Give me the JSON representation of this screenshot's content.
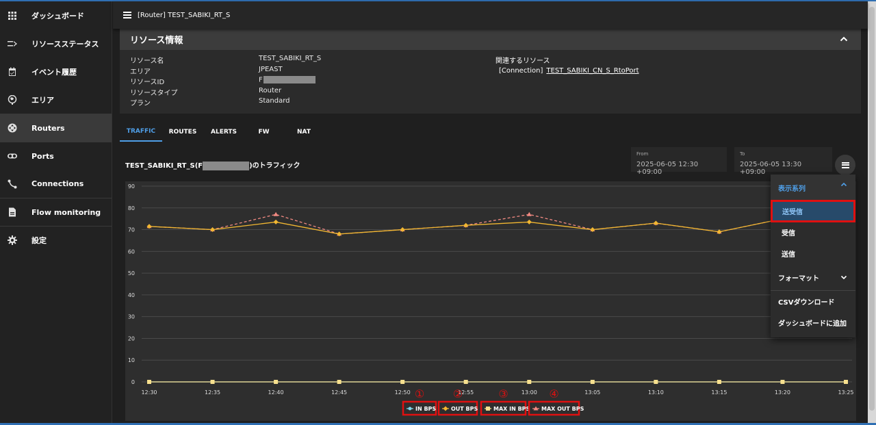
{
  "sidebar": {
    "items": [
      {
        "label": "ダッシュボード",
        "icon": "grid-icon"
      },
      {
        "label": "リソースステータス",
        "icon": "status-icon"
      },
      {
        "label": "イベント履歴",
        "icon": "calendar-icon"
      },
      {
        "label": "エリア",
        "icon": "globe-icon"
      },
      {
        "label": "Routers",
        "icon": "router-icon"
      },
      {
        "label": "Ports",
        "icon": "toggle-icon"
      },
      {
        "label": "Connections",
        "icon": "connection-icon"
      },
      {
        "label": "Flow monitoring",
        "icon": "document-icon"
      },
      {
        "label": "設定",
        "icon": "gear-icon"
      }
    ]
  },
  "header": {
    "title": "[Router] TEST_SABIKI_RT_S"
  },
  "resource": {
    "heading": "リソース情報",
    "rows": [
      {
        "label": "リソース名",
        "value": "TEST_SABIKI_RT_S"
      },
      {
        "label": "エリア",
        "value": "JPEAST"
      },
      {
        "label": "リソースID",
        "value": "F"
      },
      {
        "label": "リソースタイプ",
        "value": "Router"
      },
      {
        "label": "プラン",
        "value": "Standard"
      }
    ],
    "related_title": "関連するリソース",
    "related_type": "[Connection]",
    "related_link": "TEST_SABIKI_CN_S_RtoPort"
  },
  "tabs": [
    "TRAFFIC",
    "ROUTES",
    "ALERTS",
    "FW",
    "NAT"
  ],
  "traffic": {
    "title_prefix": "TEST_SABIKI_RT_S(F",
    "title_suffix": ")のトラフィック",
    "from_label": "From",
    "from_value": "2025-06-05 12:30 +09:00",
    "to_label": "To",
    "to_value": "2025-06-05 13:30 +09:00"
  },
  "menu": {
    "series_header": "表示系列",
    "series_options": [
      "送受信",
      "受信",
      "送信"
    ],
    "selected": "送受信",
    "format_label": "フォーマット",
    "csv_label": "CSVダウンロード",
    "dashboard_label": "ダッシュボードに追加"
  },
  "chart_data": {
    "type": "line",
    "x": [
      "12:30",
      "12:35",
      "12:40",
      "12:45",
      "12:50",
      "12:55",
      "13:00",
      "13:05",
      "13:10",
      "13:15",
      "13:20",
      "13:25"
    ],
    "ylim": [
      0,
      90
    ],
    "yticks": [
      0,
      10,
      20,
      30,
      40,
      50,
      60,
      70,
      80,
      90
    ],
    "grid": true,
    "legend_position": "bottom",
    "series": [
      {
        "name": "IN BPS",
        "color": "#7fd4e8",
        "marker": "circle",
        "values": [
          0,
          0,
          0,
          0,
          0,
          0,
          0,
          0,
          0,
          0,
          0,
          0
        ]
      },
      {
        "name": "OUT BPS",
        "color": "#f2b731",
        "marker": "diamond",
        "values": [
          71.5,
          70,
          73.5,
          68,
          70,
          72,
          73.5,
          70,
          73,
          69,
          75,
          null
        ]
      },
      {
        "name": "MAX IN BPS",
        "color": "#f7e08e",
        "marker": "square",
        "values": [
          0,
          0,
          0,
          0,
          0,
          0,
          0,
          0,
          0,
          0,
          0,
          0
        ]
      },
      {
        "name": "MAX OUT BPS",
        "color": "#f28a82",
        "marker": "triangle",
        "dashed": true,
        "values": [
          71.5,
          70,
          77,
          68,
          70,
          72,
          77,
          70,
          73,
          69,
          75,
          null
        ]
      }
    ],
    "annotations": [
      "①",
      "②",
      "③",
      "④"
    ]
  }
}
